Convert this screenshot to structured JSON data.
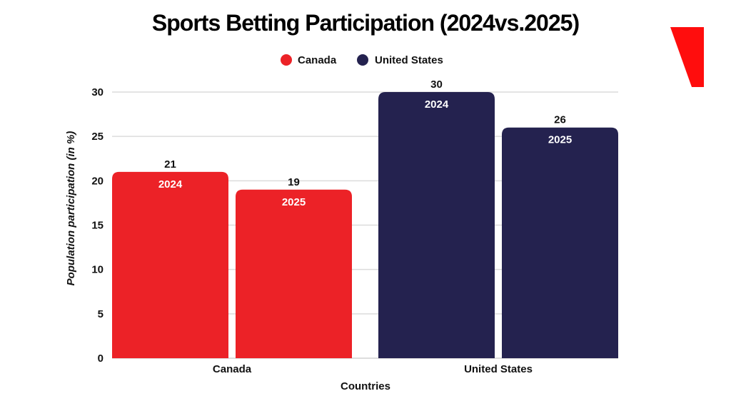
{
  "chart_data": {
    "type": "bar",
    "title": "Sports Betting Participation (2024vs.2025)",
    "xlabel": "Countries",
    "ylabel": "Population participation (in %)",
    "ylim": [
      0,
      30
    ],
    "yticks": [
      0,
      5,
      10,
      15,
      20,
      25,
      30
    ],
    "grid": true,
    "legend_position": "top",
    "categories": [
      "Canada",
      "United States"
    ],
    "series": [
      {
        "name": "Canada",
        "color": "#ec2227",
        "bars": [
          {
            "label": "2024",
            "value": 21
          },
          {
            "label": "2025",
            "value": 19
          }
        ]
      },
      {
        "name": "United States",
        "color": "#24224f",
        "bars": [
          {
            "label": "2024",
            "value": 30
          },
          {
            "label": "2025",
            "value": 26
          }
        ]
      }
    ]
  },
  "logo_color": "#ff0d0d"
}
